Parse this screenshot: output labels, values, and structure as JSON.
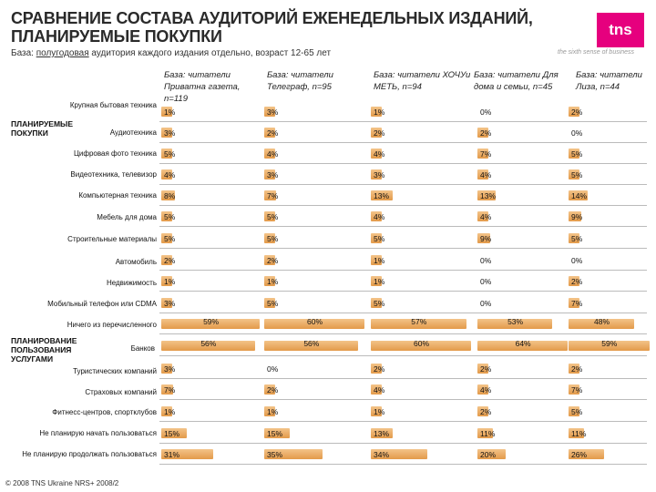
{
  "title": "СРАВНЕНИЕ СОСТАВА АУДИТОРИЙ ЕЖЕНЕДЕЛЬНЫХ ИЗДАНИЙ, ПЛАНИРУЕМЫЕ ПОКУПКИ",
  "subtitle_parts": [
    "База: ",
    "полугодовая",
    " аудитория каждого издания отдельно, возраст 12-65 лет"
  ],
  "logo": {
    "text": "tns",
    "tagline": "the sixth sense of business",
    "color": "#e6007e"
  },
  "footer": "© 2008 TNS Ukraine  NRS+ 2008/2",
  "chart_data": {
    "type": "bar",
    "bar_color": "#e8a75a",
    "scale_max": 60,
    "columns": [
      "База: читатели Приватна газета, n=119",
      "База: читатели Телеграф, n=95",
      "База: читатели ХОЧУи МЕТЬ, n=94",
      "База: читатели Для дома и семьи, n=45",
      "База: читатели Лиза, n=44"
    ],
    "sections": [
      {
        "name": "ПЛАНИРУЕМЫЕ ПОКУПКИ",
        "rows": [
          {
            "label": "Крупная бытовая техника",
            "values": [
              1,
              3,
              1,
              0,
              2
            ]
          },
          {
            "label": "Аудиотехника",
            "values": [
              3,
              2,
              2,
              2,
              0
            ]
          },
          {
            "label": "Цифровая фото техника",
            "values": [
              5,
              4,
              4,
              7,
              5
            ]
          },
          {
            "label": "Видеотехника, телевизор",
            "values": [
              4,
              3,
              3,
              4,
              5
            ]
          },
          {
            "label": "Компьютерная техника",
            "values": [
              8,
              7,
              13,
              13,
              14
            ]
          },
          {
            "label": "Мебель для дома",
            "values": [
              5,
              5,
              4,
              4,
              9
            ]
          },
          {
            "label": "Строительные материалы",
            "values": [
              5,
              5,
              5,
              9,
              5
            ]
          },
          {
            "label": "Автомобиль",
            "values": [
              2,
              2,
              1,
              0,
              0
            ]
          },
          {
            "label": "Недвижимость",
            "values": [
              1,
              1,
              1,
              0,
              2
            ]
          },
          {
            "label": "Мобильный телефон или CDMA",
            "values": [
              3,
              5,
              5,
              0,
              7
            ]
          },
          {
            "label": "Ничего из перечисленного",
            "values": [
              59,
              60,
              57,
              53,
              48
            ]
          }
        ]
      },
      {
        "name": "ПЛАНИРОВАНИЕ ПОЛЬЗОВАНИЯ УСЛУГАМИ",
        "rows": [
          {
            "label": "Банков",
            "values": [
              56,
              56,
              60,
              64,
              59
            ]
          },
          {
            "label": "Туристических компаний",
            "values": [
              3,
              0,
              2,
              2,
              2
            ]
          },
          {
            "label": "Страховых компаний",
            "values": [
              7,
              2,
              4,
              4,
              7
            ]
          },
          {
            "label": "Фитнесс-центров, спортклубов",
            "values": [
              1,
              1,
              1,
              2,
              5
            ]
          },
          {
            "label": "Не планирую начать пользоваться",
            "values": [
              15,
              15,
              13,
              11,
              11
            ]
          },
          {
            "label": "Не планирую продолжать пользоваться",
            "values": [
              31,
              35,
              34,
              20,
              26
            ]
          }
        ]
      }
    ]
  }
}
